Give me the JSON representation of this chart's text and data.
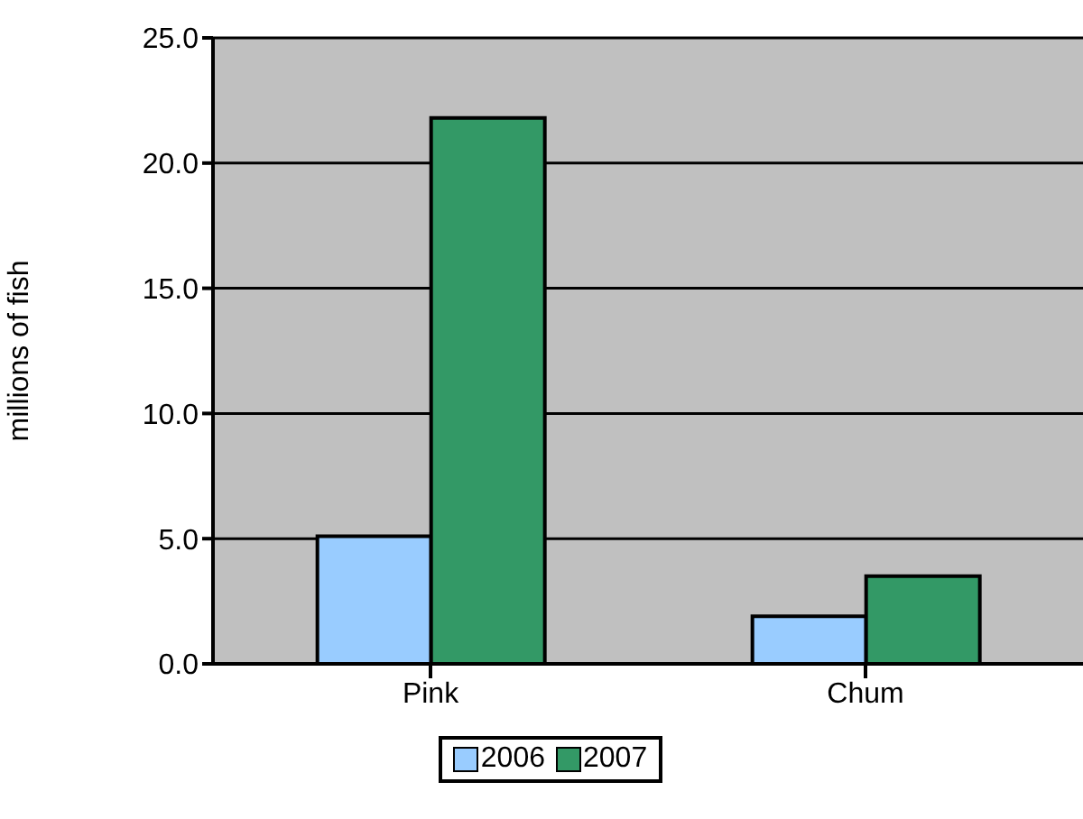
{
  "chart_data": {
    "type": "bar",
    "ylabel": "millions of fish",
    "categories": [
      "Pink",
      "Chum"
    ],
    "series": [
      {
        "name": "2006",
        "color": "#99ccff",
        "values": [
          5.1,
          1.9
        ]
      },
      {
        "name": "2007",
        "color": "#339966",
        "values": [
          21.8,
          3.5
        ]
      }
    ],
    "ylim": [
      0,
      25
    ],
    "yticks": [
      {
        "value": 0,
        "label": "0.0"
      },
      {
        "value": 5,
        "label": "5.0"
      },
      {
        "value": 10,
        "label": "10.0"
      },
      {
        "value": 15,
        "label": "15.0"
      },
      {
        "value": 20,
        "label": "20.0"
      },
      {
        "value": 25,
        "label": "25.0"
      }
    ],
    "grid": "y",
    "legend": "bottom"
  }
}
